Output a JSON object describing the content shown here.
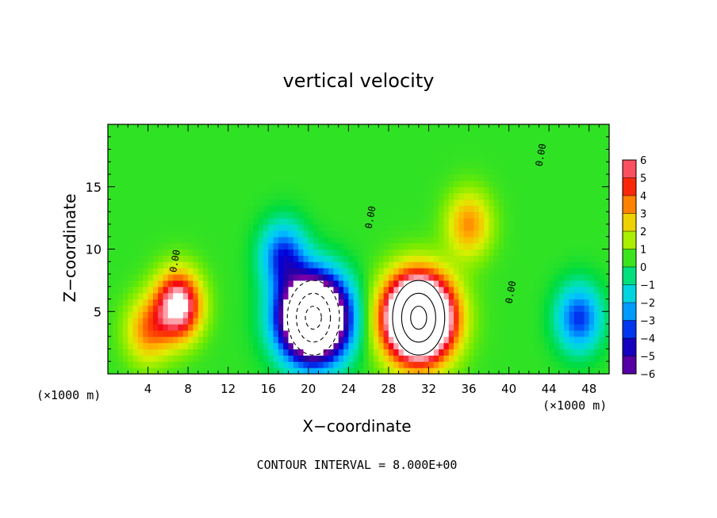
{
  "chart_data": {
    "type": "heatmap",
    "title": "vertical velocity",
    "xlabel": "X−coordinate",
    "ylabel": "Z−coordinate",
    "x_unit_left": "(×1000 m)",
    "x_unit_right": "(×1000 m)",
    "x_ticks": [
      "4",
      "8",
      "12",
      "16",
      "20",
      "24",
      "28",
      "32",
      "36",
      "40",
      "44",
      "48"
    ],
    "y_ticks": [
      "5",
      "10",
      "15"
    ],
    "xlim": [
      0,
      50
    ],
    "ylim": [
      0,
      20
    ],
    "colorbar_ticks": [
      "6",
      "5",
      "4",
      "3",
      "2",
      "1",
      "0",
      "−1",
      "−2",
      "−3",
      "−4",
      "−5",
      "−6"
    ],
    "colorbar_range": [
      -6,
      6
    ],
    "contour_label": "0.00",
    "note": "CONTOUR INTERVAL = 8.000E+00",
    "features": [
      {
        "kind": "updraft",
        "x": 31,
        "z": 4.5,
        "peak": 16
      },
      {
        "kind": "downdraft",
        "x": 20.5,
        "z": 4.5,
        "peak": -16
      },
      {
        "kind": "updraft",
        "x": 7,
        "z": 5.5,
        "peak": 7
      },
      {
        "kind": "updraft",
        "x": 4,
        "z": 3.5,
        "peak": 3
      },
      {
        "kind": "updraft",
        "x": 36,
        "z": 12,
        "peak": 3
      },
      {
        "kind": "downdraft",
        "x": 17.5,
        "z": 9.5,
        "peak": -4
      },
      {
        "kind": "downdraft",
        "x": 47,
        "z": 4.5,
        "peak": -4
      }
    ]
  }
}
